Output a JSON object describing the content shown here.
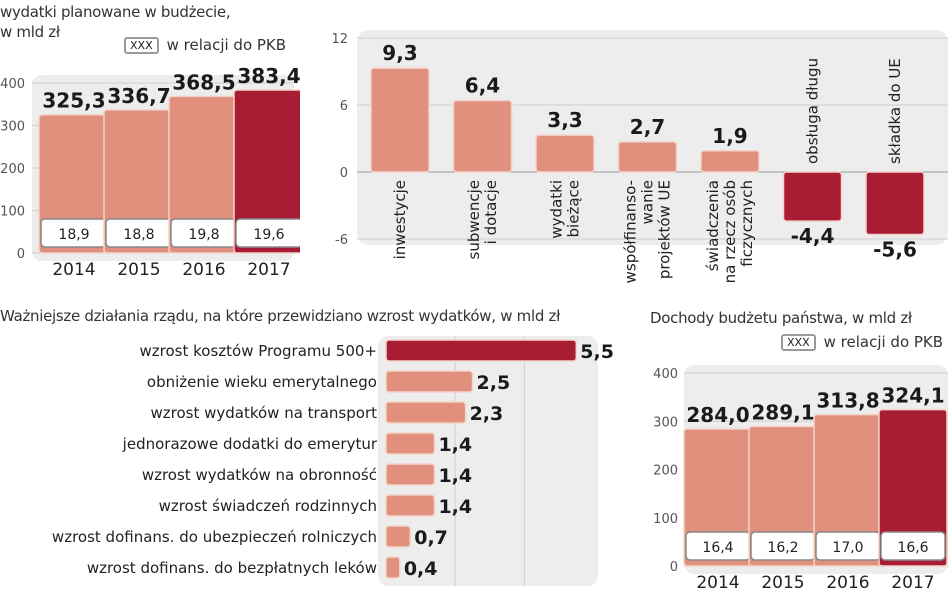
{
  "colors": {
    "bar_light": "#e0907c",
    "bar_dark": "#a81c34",
    "panel": "#ededed",
    "grid": "#d0d0d0"
  },
  "chart_data": [
    {
      "id": "expenditure",
      "type": "bar",
      "title_lines": [
        "wydatki planowane w budżecie,",
        "w mld zł"
      ],
      "legend": {
        "box": "XXX",
        "label": "w relacji do PKB"
      },
      "categories": [
        "2014",
        "2015",
        "2016",
        "2017"
      ],
      "values": [
        325.3,
        336.7,
        368.5,
        383.4
      ],
      "value_labels": [
        "325,3",
        "336,7",
        "368,5",
        "383,4"
      ],
      "pkb_labels": [
        "18,9",
        "18,8",
        "19,8",
        "19,6"
      ],
      "highlight": [
        false,
        false,
        false,
        true
      ],
      "yticks": [
        0,
        100,
        200,
        300,
        400
      ],
      "ylim": [
        0,
        400
      ],
      "grid": true
    },
    {
      "id": "changes",
      "type": "bar",
      "title_lines": [],
      "categories": [
        [
          "inwestycje"
        ],
        [
          "subwencje",
          "i dotacje"
        ],
        [
          "wydatki",
          "bieżące"
        ],
        [
          "współfinanso-",
          "wanie",
          "projektów UE"
        ],
        [
          "świadczenia",
          "na rzecz osób",
          "ficzycznych"
        ],
        [
          "obsługa długu"
        ],
        [
          "składka do UE"
        ]
      ],
      "values": [
        9.3,
        6.4,
        3.3,
        2.7,
        1.9,
        -4.4,
        -5.6
      ],
      "value_labels": [
        "9,3",
        "6,4",
        "3,3",
        "2,7",
        "1,9",
        "-4,4",
        "-5,6"
      ],
      "yticks": [
        -6,
        0,
        6,
        12
      ],
      "ylim": [
        -6,
        12
      ],
      "grid": true
    },
    {
      "id": "government_actions",
      "type": "bar",
      "orientation": "horizontal",
      "title": "Ważniejsze działania rządu, na które przewidziano wzrost wydatków, w mld zł",
      "categories": [
        "wzrost kosztów Programu 500+",
        "obniżenie wieku emerytalnego",
        "wzrost wydatków na transport",
        "jednorazowe dodatki do emerytur",
        "wzrost wydatków na obronność",
        "wzrost świadczeń rodzinnych",
        "wzrost dofinans. do ubezpieczeń rolniczych",
        "wzrost dofinans. do bezpłatnych leków"
      ],
      "values": [
        5.5,
        2.5,
        2.3,
        1.4,
        1.4,
        1.4,
        0.7,
        0.4
      ],
      "value_labels": [
        "5,5",
        "2,5",
        "2,3",
        "1,4",
        "1,4",
        "1,4",
        "0,7",
        "0,4"
      ],
      "highlight": [
        true,
        false,
        false,
        false,
        false,
        false,
        false,
        false
      ],
      "xlim": [
        0,
        6
      ],
      "grid": true
    },
    {
      "id": "revenue",
      "type": "bar",
      "title": "Dochody budżetu państwa, w mld zł",
      "legend": {
        "box": "XXX",
        "label": "w relacji do PKB"
      },
      "categories": [
        "2014",
        "2015",
        "2016",
        "2017"
      ],
      "values": [
        284.0,
        289.1,
        313.8,
        324.1
      ],
      "value_labels": [
        "284,0",
        "289,1",
        "313,8",
        "324,1"
      ],
      "pkb_labels": [
        "16,4",
        "16,2",
        "17,0",
        "16,6"
      ],
      "highlight": [
        false,
        false,
        false,
        true
      ],
      "yticks": [
        0,
        100,
        200,
        300,
        400
      ],
      "ylim": [
        0,
        400
      ],
      "grid": true
    }
  ]
}
